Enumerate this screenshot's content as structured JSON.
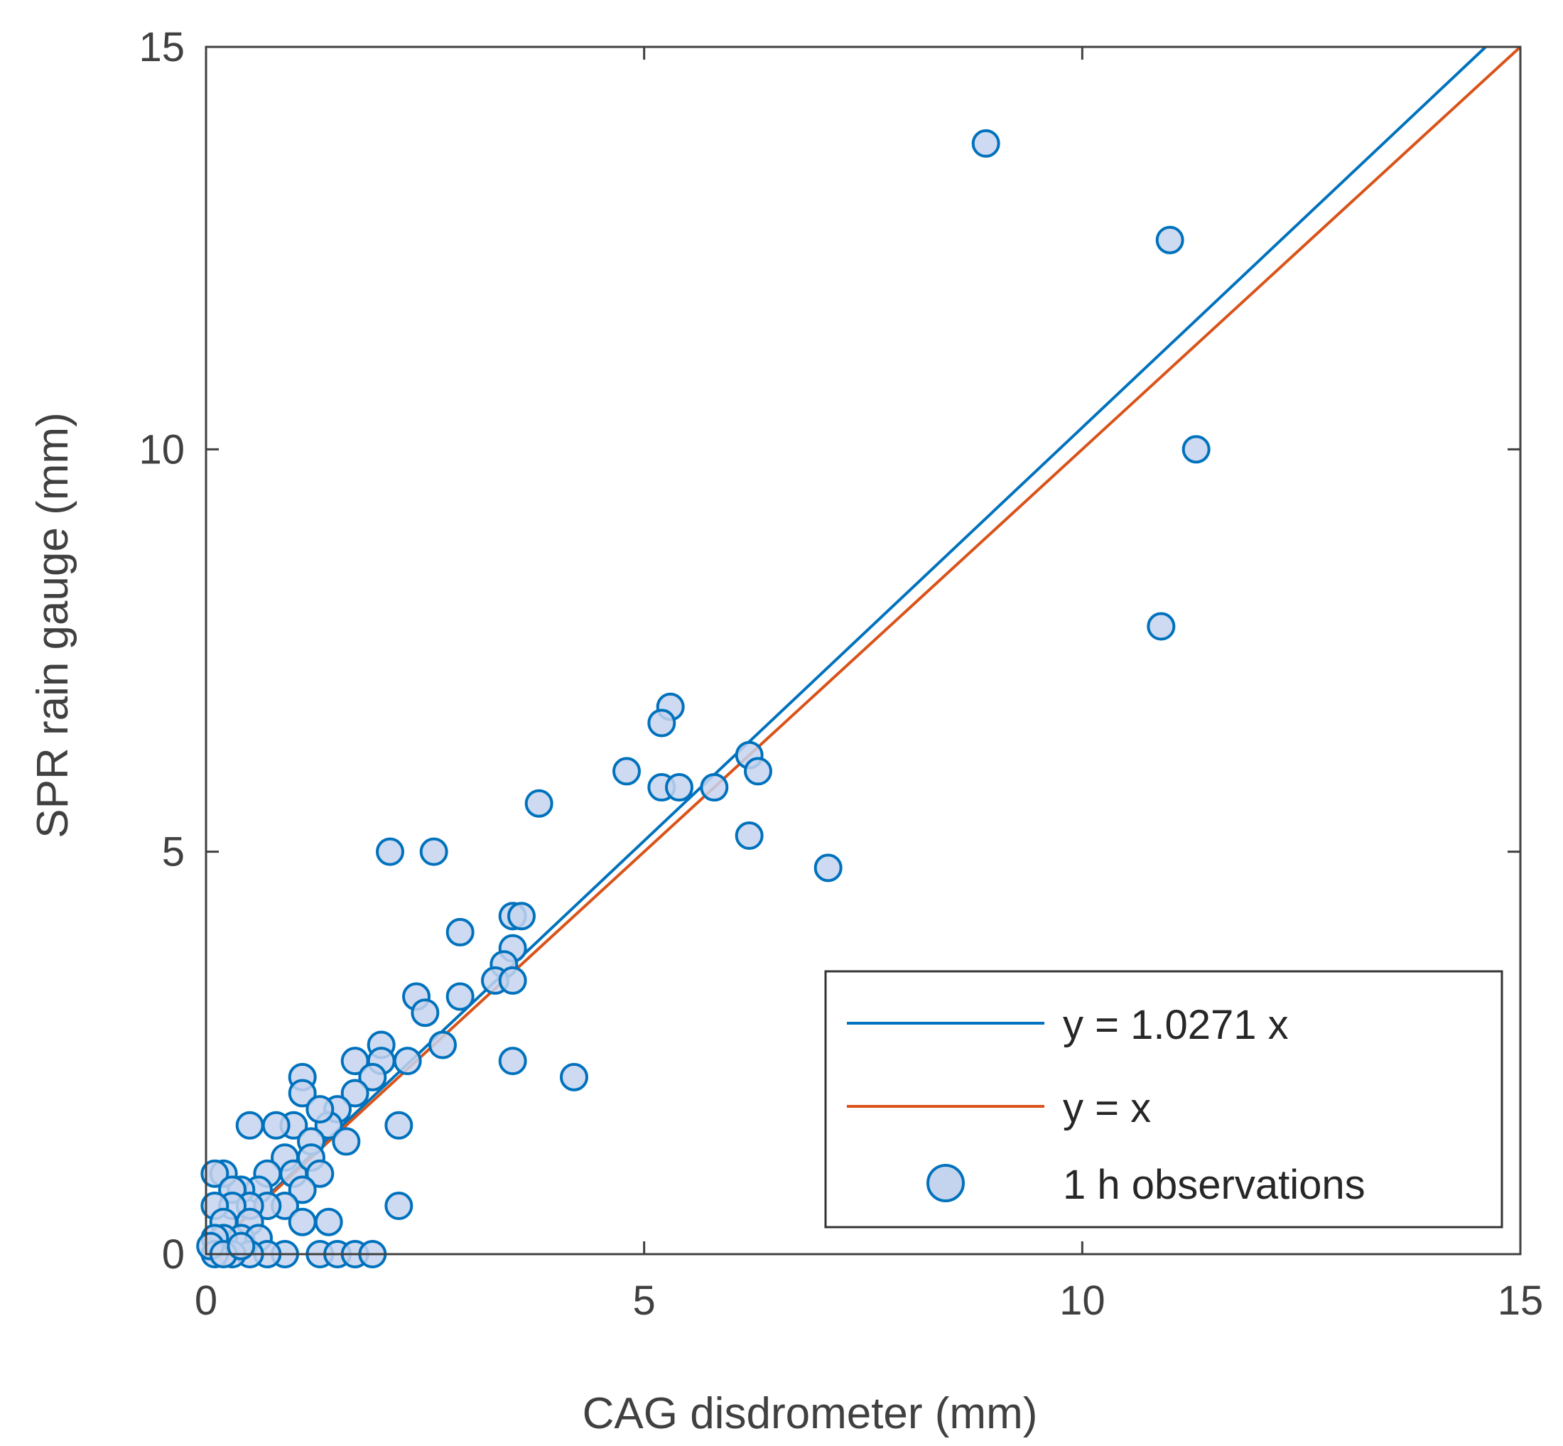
{
  "chart_data": {
    "type": "scatter",
    "title": "",
    "xlabel": "CAG disdrometer (mm)",
    "ylabel": "SPR rain gauge (mm)",
    "xlim": [
      0,
      15
    ],
    "ylim": [
      0,
      15
    ],
    "xticks": [
      0,
      5,
      10,
      15
    ],
    "yticks": [
      0,
      5,
      10,
      15
    ],
    "xtick_labels": [
      "0",
      "5",
      "10",
      "15"
    ],
    "ytick_labels": [
      "0",
      "5",
      "10",
      "15"
    ],
    "grid": false,
    "legend_position": "bottom-right",
    "series": [
      {
        "name": "y = 1.0271 x",
        "kind": "line",
        "slope": 1.0271,
        "color": "#0072BD"
      },
      {
        "name": "y = x",
        "kind": "line",
        "slope": 1.0,
        "color": "#D95319"
      },
      {
        "name": "1 h observations",
        "kind": "scatter",
        "marker": "circle",
        "edge_color": "#0072BD",
        "fill_color": "#C5D4EE",
        "points": [
          [
            8.9,
            13.8
          ],
          [
            11.0,
            12.6
          ],
          [
            11.3,
            10.0
          ],
          [
            10.9,
            7.8
          ],
          [
            5.3,
            6.8
          ],
          [
            5.2,
            6.6
          ],
          [
            6.2,
            6.2
          ],
          [
            6.3,
            6.0
          ],
          [
            4.8,
            6.0
          ],
          [
            5.2,
            5.8
          ],
          [
            5.4,
            5.8
          ],
          [
            5.8,
            5.8
          ],
          [
            3.8,
            5.6
          ],
          [
            6.2,
            5.2
          ],
          [
            7.1,
            4.8
          ],
          [
            2.1,
            5.0
          ],
          [
            2.6,
            5.0
          ],
          [
            3.5,
            4.2
          ],
          [
            3.6,
            4.2
          ],
          [
            2.9,
            4.0
          ],
          [
            3.5,
            3.8
          ],
          [
            3.4,
            3.6
          ],
          [
            3.3,
            3.4
          ],
          [
            3.5,
            3.4
          ],
          [
            2.4,
            3.2
          ],
          [
            2.5,
            3.0
          ],
          [
            2.9,
            3.2
          ],
          [
            2.7,
            2.6
          ],
          [
            2.0,
            2.6
          ],
          [
            2.3,
            2.4
          ],
          [
            2.0,
            2.4
          ],
          [
            1.7,
            2.4
          ],
          [
            1.9,
            2.2
          ],
          [
            3.5,
            2.4
          ],
          [
            4.2,
            2.2
          ],
          [
            1.7,
            2.0
          ],
          [
            1.5,
            1.8
          ],
          [
            1.4,
            1.6
          ],
          [
            1.1,
            2.2
          ],
          [
            1.1,
            2.0
          ],
          [
            1.3,
            1.8
          ],
          [
            1.0,
            1.6
          ],
          [
            2.2,
            1.6
          ],
          [
            0.5,
            1.6
          ],
          [
            0.8,
            1.6
          ],
          [
            1.6,
            1.4
          ],
          [
            1.2,
            1.4
          ],
          [
            0.9,
            1.2
          ],
          [
            1.0,
            1.0
          ],
          [
            1.2,
            1.2
          ],
          [
            1.3,
            1.0
          ],
          [
            0.7,
            1.0
          ],
          [
            0.6,
            0.8
          ],
          [
            0.4,
            0.8
          ],
          [
            0.2,
            1.0
          ],
          [
            0.1,
            1.0
          ],
          [
            0.3,
            0.8
          ],
          [
            1.1,
            0.8
          ],
          [
            0.9,
            0.6
          ],
          [
            0.7,
            0.6
          ],
          [
            2.2,
            0.6
          ],
          [
            0.5,
            0.6
          ],
          [
            0.3,
            0.6
          ],
          [
            0.1,
            0.6
          ],
          [
            0.2,
            0.4
          ],
          [
            1.1,
            0.4
          ],
          [
            1.4,
            0.4
          ],
          [
            0.5,
            0.4
          ],
          [
            0.4,
            0.2
          ],
          [
            0.2,
            0.2
          ],
          [
            0.1,
            0.2
          ],
          [
            0.6,
            0.2
          ],
          [
            0.9,
            0.0
          ],
          [
            1.3,
            0.0
          ],
          [
            1.5,
            0.0
          ],
          [
            1.7,
            0.0
          ],
          [
            1.9,
            0.0
          ],
          [
            0.7,
            0.0
          ],
          [
            0.5,
            0.0
          ],
          [
            0.3,
            0.0
          ],
          [
            0.1,
            0.0
          ],
          [
            0.05,
            0.1
          ],
          [
            0.2,
            0.0
          ],
          [
            0.4,
            0.1
          ]
        ]
      }
    ]
  }
}
